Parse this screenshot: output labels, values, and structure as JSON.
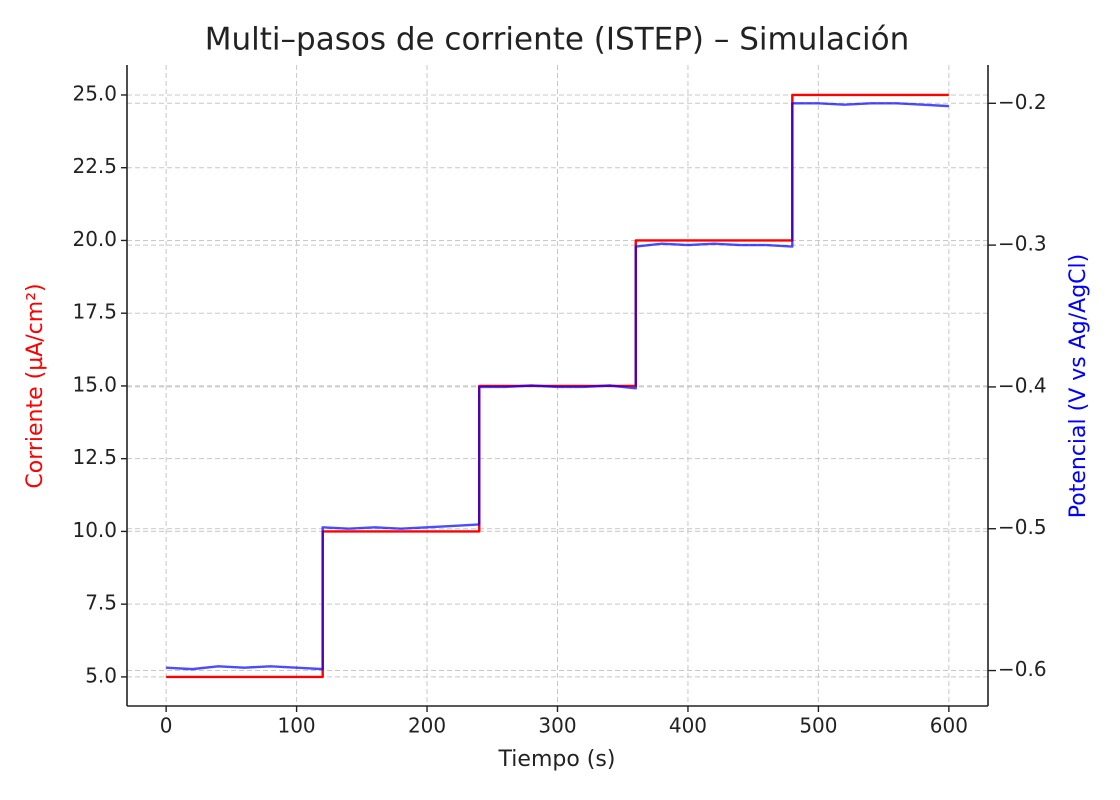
{
  "chart_data": {
    "type": "line",
    "title": "Multi–pasos de corriente (ISTEP) – Simulación",
    "x_label": "Tiempo (s)",
    "y_label": "Corriente (µA/cm²)",
    "y_label_color": "#ff0000",
    "y2_label": "Potencial (V vs Ag/AgCl)",
    "y2_label_color": "#0000ff",
    "xlim": [
      -30,
      630
    ],
    "ylim": [
      4.0,
      26.03
    ],
    "y2lim": [
      -0.625,
      -0.173
    ],
    "xticks": [
      0,
      100,
      200,
      300,
      400,
      500,
      600
    ],
    "yticks": [
      {
        "value": 5,
        "label": "5.0"
      },
      7.5,
      {
        "value": 10,
        "label": "10.0"
      },
      12.5,
      {
        "value": 15,
        "label": "15.0"
      },
      17.5,
      {
        "value": 20,
        "label": "20.0"
      },
      22.5,
      {
        "value": 25,
        "label": "25.0"
      }
    ],
    "y2ticks": [
      {
        "value": -0.6,
        "label": "−0.6"
      },
      {
        "value": -0.5,
        "label": "−0.5"
      },
      {
        "value": -0.4,
        "label": "−0.4"
      },
      {
        "value": -0.3,
        "label": "−0.3"
      },
      {
        "value": -0.2,
        "label": "−0.2"
      }
    ],
    "grid": true,
    "series": [
      {
        "color": "#ff0000",
        "axis": "y",
        "x": [
          0,
          120,
          120,
          240,
          240,
          360,
          360,
          480,
          480,
          600
        ],
        "values": [
          5,
          5,
          10,
          10,
          15,
          15,
          20,
          20,
          25,
          25
        ]
      },
      {
        "color": "#0000ff",
        "axis": "y2",
        "x": [
          0,
          20,
          40,
          60,
          80,
          100,
          120,
          120,
          140,
          160,
          180,
          200,
          220,
          240,
          240,
          260,
          280,
          300,
          320,
          340,
          360,
          360,
          380,
          400,
          420,
          440,
          460,
          480,
          480,
          500,
          520,
          540,
          560,
          580,
          600
        ],
        "values": [
          -0.598,
          -0.599,
          -0.597,
          -0.598,
          -0.597,
          -0.598,
          -0.599,
          -0.499,
          -0.5,
          -0.499,
          -0.5,
          -0.499,
          -0.498,
          -0.497,
          -0.4,
          -0.4,
          -0.399,
          -0.4,
          -0.4,
          -0.399,
          -0.401,
          -0.301,
          -0.299,
          -0.3,
          -0.299,
          -0.3,
          -0.3,
          -0.301,
          -0.2,
          -0.2,
          -0.201,
          -0.2,
          -0.2,
          -0.201,
          -0.202
        ]
      }
    ]
  }
}
